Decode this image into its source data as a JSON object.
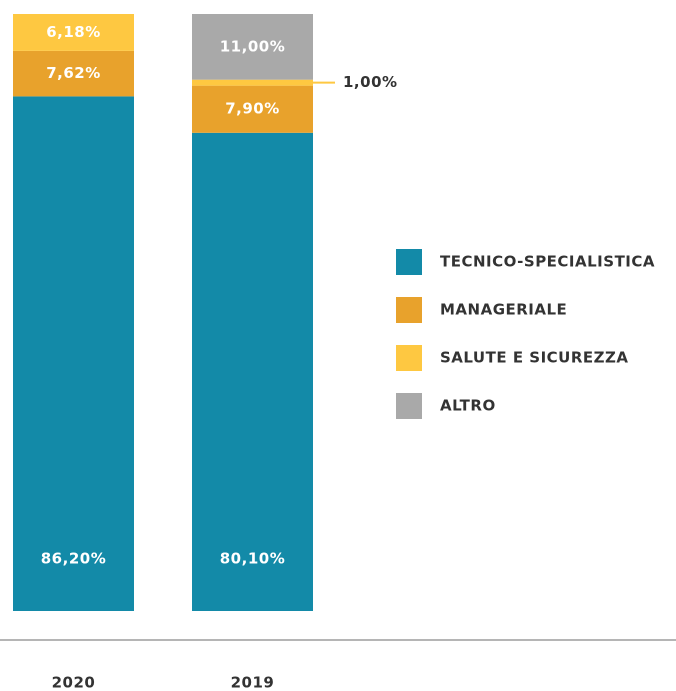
{
  "chart_data": {
    "type": "stacked-bar",
    "categories": [
      "2020",
      "2019"
    ],
    "ylim": [
      0,
      100
    ],
    "series": [
      {
        "name": "TECNICO-SPECIALISTICA",
        "color": "#138aa8",
        "values": [
          86.2,
          80.1
        ],
        "value_labels": [
          "86,20%",
          "80,10%"
        ]
      },
      {
        "name": "MANAGERIALE",
        "color": "#e8a22c",
        "values": [
          7.62,
          7.9
        ],
        "value_labels": [
          "7,62%",
          "7,90%"
        ]
      },
      {
        "name": "SALUTE E SICUREZZA",
        "color": "#fec841",
        "values": [
          6.18,
          1.0
        ],
        "value_labels": [
          "6,18%",
          "1,00%"
        ]
      },
      {
        "name": "ALTRO",
        "color": "#a9a9a9",
        "values": [
          null,
          11.0
        ],
        "value_labels": [
          null,
          "11,00%"
        ]
      }
    ],
    "legend": "right"
  }
}
